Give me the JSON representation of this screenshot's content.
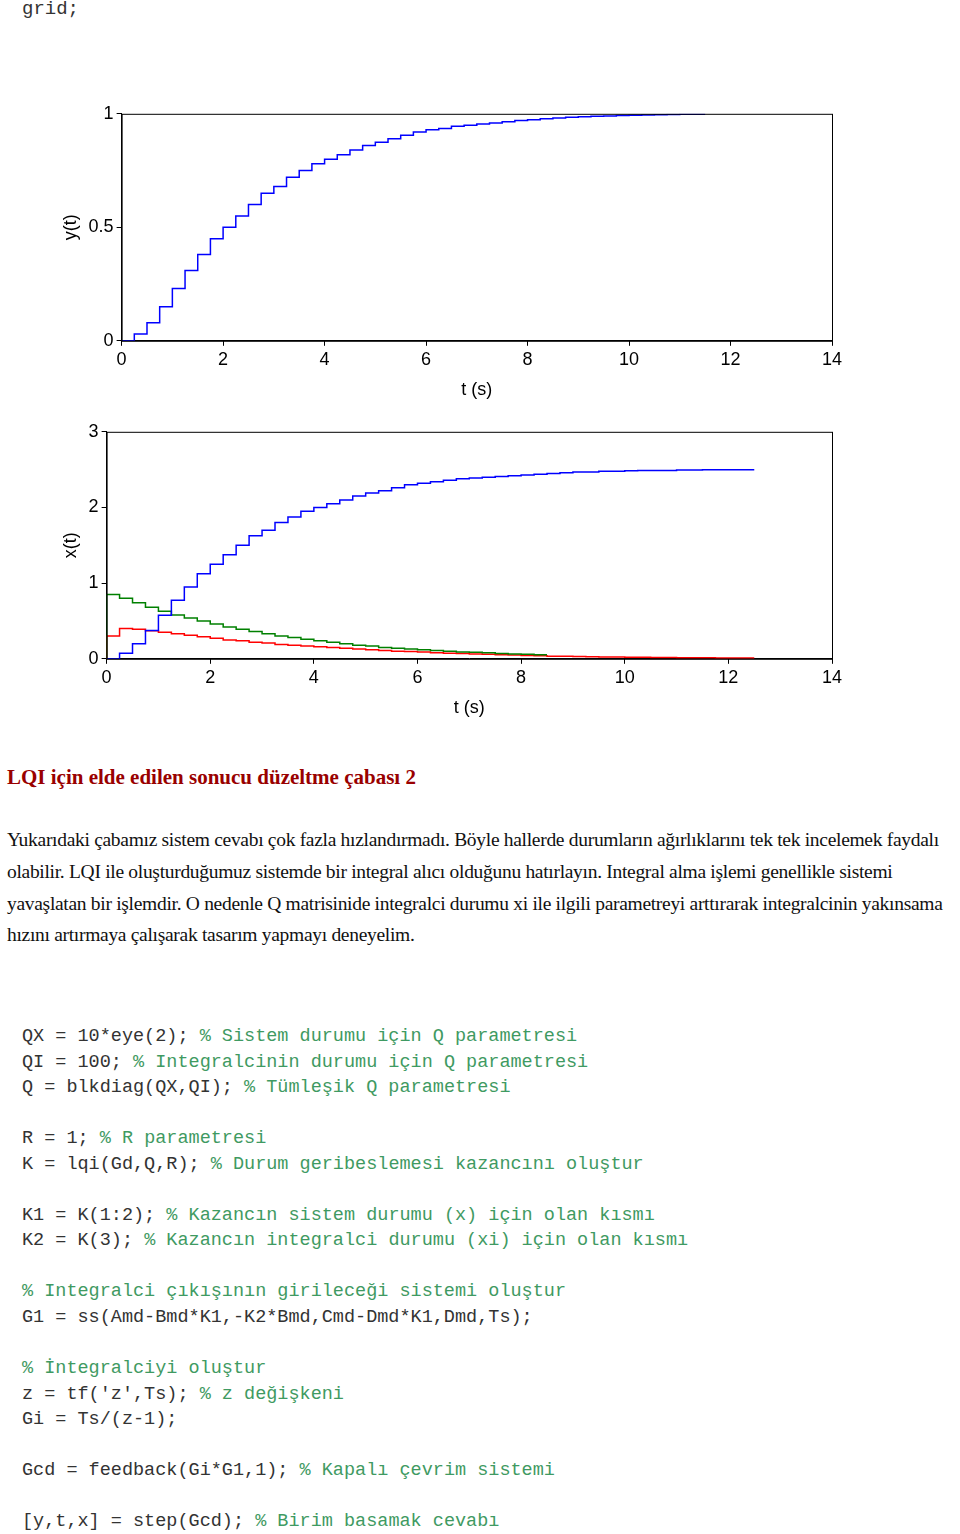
{
  "top_code": "grid;",
  "chart_data": [
    {
      "type": "line",
      "line_style": "steps",
      "grid": false,
      "x_label": "t (s)",
      "y_label": "y(t)",
      "xlim": [
        0,
        14
      ],
      "xticks": [
        0,
        2,
        4,
        6,
        8,
        10,
        12,
        14
      ],
      "ylim": [
        0,
        1
      ],
      "yticks": [
        0,
        0.5,
        1
      ],
      "x": [
        0,
        0.25,
        0.5,
        0.75,
        1,
        1.25,
        1.5,
        1.75,
        2,
        2.25,
        2.5,
        2.75,
        3,
        3.25,
        3.5,
        3.75,
        4,
        4.25,
        4.5,
        4.75,
        5,
        5.25,
        5.5,
        5.75,
        6,
        6.25,
        6.5,
        6.75,
        7,
        7.25,
        7.5,
        7.75,
        8,
        8.25,
        8.5,
        8.75,
        9,
        9.25,
        9.5,
        9.75,
        10,
        10.25,
        10.5,
        10.75,
        11,
        11.25,
        11.5
      ],
      "series": [
        {
          "color": "#0000ff",
          "values": [
            0,
            0,
            0.03,
            0.08,
            0.15,
            0.23,
            0.31,
            0.38,
            0.45,
            0.5,
            0.55,
            0.6,
            0.65,
            0.68,
            0.72,
            0.75,
            0.78,
            0.8,
            0.82,
            0.84,
            0.86,
            0.875,
            0.89,
            0.905,
            0.92,
            0.93,
            0.935,
            0.945,
            0.95,
            0.955,
            0.96,
            0.965,
            0.97,
            0.974,
            0.978,
            0.982,
            0.985,
            0.987,
            0.989,
            0.99,
            0.992,
            0.994,
            0.995,
            0.996,
            0.997,
            0.998,
            0.998
          ]
        }
      ]
    },
    {
      "type": "line",
      "line_style": "steps",
      "grid": false,
      "x_label": "t (s)",
      "y_label": "x(t)",
      "xlim": [
        0,
        14
      ],
      "xticks": [
        0,
        2,
        4,
        6,
        8,
        10,
        12,
        14
      ],
      "ylim": [
        0,
        3
      ],
      "yticks": [
        0,
        1,
        2,
        3
      ],
      "x": [
        0,
        0.25,
        0.5,
        0.75,
        1,
        1.25,
        1.5,
        1.75,
        2,
        2.25,
        2.5,
        2.75,
        3,
        3.25,
        3.5,
        3.75,
        4,
        4.25,
        4.5,
        4.75,
        5,
        5.25,
        5.5,
        5.75,
        6,
        6.25,
        6.5,
        6.75,
        7,
        7.25,
        7.5,
        7.75,
        8,
        8.25,
        8.5,
        8.75,
        9,
        9.25,
        9.5,
        9.75,
        10,
        10.25,
        10.5,
        10.75,
        11,
        11.25,
        11.5,
        11.75,
        12,
        12.25,
        12.5
      ],
      "series": [
        {
          "color": "#0000ff",
          "values": [
            0,
            0,
            0.075,
            0.2,
            0.375,
            0.575,
            0.775,
            0.95,
            1.125,
            1.25,
            1.375,
            1.5,
            1.625,
            1.7,
            1.8,
            1.875,
            1.95,
            2.0,
            2.05,
            2.1,
            2.15,
            2.19,
            2.22,
            2.26,
            2.3,
            2.32,
            2.34,
            2.36,
            2.38,
            2.39,
            2.4,
            2.41,
            2.42,
            2.43,
            2.44,
            2.45,
            2.46,
            2.47,
            2.47,
            2.48,
            2.48,
            2.485,
            2.49,
            2.49,
            2.49,
            2.495,
            2.495,
            2.5,
            2.5,
            2.5,
            2.5
          ]
        },
        {
          "color": "#008000",
          "values": [
            0,
            0.85,
            0.8,
            0.74,
            0.68,
            0.63,
            0.58,
            0.54,
            0.5,
            0.46,
            0.42,
            0.39,
            0.36,
            0.33,
            0.3,
            0.28,
            0.26,
            0.24,
            0.22,
            0.2,
            0.18,
            0.17,
            0.15,
            0.14,
            0.13,
            0.12,
            0.11,
            0.1,
            0.09,
            0.085,
            0.08,
            0.07,
            0.065,
            0.06,
            0.055,
            null,
            null,
            null,
            null,
            null,
            null,
            null,
            null,
            null,
            null,
            null,
            null,
            null,
            null,
            null,
            null
          ]
        },
        {
          "color": "#ff0000",
          "values": [
            0,
            0.3,
            0.4,
            0.39,
            0.37,
            0.35,
            0.33,
            0.31,
            0.29,
            0.27,
            0.25,
            0.24,
            0.22,
            0.21,
            0.19,
            0.18,
            0.17,
            0.16,
            0.15,
            0.14,
            0.13,
            0.12,
            0.11,
            0.1,
            0.095,
            0.09,
            0.08,
            0.075,
            0.07,
            0.065,
            0.06,
            0.055,
            0.05,
            0.045,
            0.04,
            0.035,
            0.033,
            0.03,
            0.028,
            0.025,
            0.023,
            0.021,
            0.02,
            0.018,
            0.016,
            0.015,
            0.014,
            0.013,
            0.012,
            0.011,
            0.01
          ]
        }
      ]
    }
  ],
  "heading": "LQI için elde edilen sonucu düzeltme çabası 2",
  "paragraph": "Yukarıdaki çabamız sistem cevabı çok fazla hızlandırmadı. Böyle hallerde durumların ağırlıklarını tek tek incelemek faydalı olabilir. LQI ile oluşturduğumuz sistemde bir integral alıcı olduğunu hatırlayın. Integral alma işlemi genellikle sistemi yavaşlatan bir işlemdir. O nedenle Q matrisinide integralci durumu xi ile ilgili parametreyi arttırarak integralcinin yakınsama hızını artırmaya çalışarak tasarım yapmayı deneyelim.",
  "code": [
    {
      "code": "QX = 10*eye(2);",
      "comment": "% Sistem durumu için Q parametresi"
    },
    {
      "code": "QI = 100;",
      "comment": "% Integralcinin durumu için Q parametresi"
    },
    {
      "code": "Q = blkdiag(QX,QI);",
      "comment": "% Tümleşik Q parametresi"
    },
    null,
    {
      "code": "R = 1;",
      "comment": "% R parametresi"
    },
    {
      "code": "K = lqi(Gd,Q,R);",
      "comment": "% Durum geribeslemesi kazancını oluştur"
    },
    null,
    {
      "code": "K1 = K(1:2);",
      "comment": "% Kazancın sistem durumu (x) için olan kısmı"
    },
    {
      "code": "K2 = K(3);",
      "comment": "% Kazancın integralci durumu (xi) için olan kısmı"
    },
    null,
    {
      "comment": "% Integralci çıkışının girileceği sistemi oluştur"
    },
    {
      "code": "G1 = ss(Amd-Bmd*K1,-K2*Bmd,Cmd-Dmd*K1,Dmd,Ts);"
    },
    null,
    {
      "comment": "% İntegralciyi oluştur"
    },
    {
      "code": "z = tf('z',Ts);",
      "comment": "% z değişkeni"
    },
    {
      "code": "Gi = Ts/(z-1);"
    },
    null,
    {
      "code": "Gcd = feedback(Gi*G1,1);",
      "comment": "% Kapalı çevrim sistemi"
    },
    null,
    {
      "code": "[y,t,x] = step(Gcd);",
      "comment": "% Birim basamak cevabı"
    }
  ]
}
